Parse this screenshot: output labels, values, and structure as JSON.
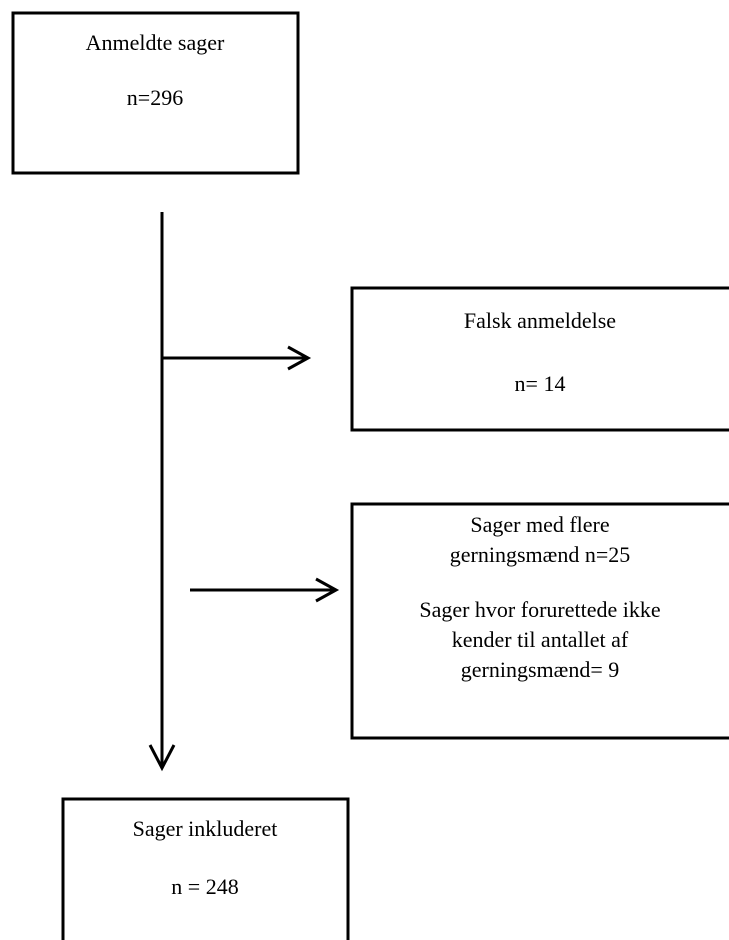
{
  "nodes": [
    {
      "lines": [
        "Anmeldte sager",
        "n=296"
      ]
    },
    {
      "lines": [
        "Falsk anmeldelse",
        "n= 14"
      ]
    },
    {
      "lines": [
        "Sager med flere",
        "gerningsmænd n=25",
        "Sager hvor forurettede ikke",
        "kender til antallet af",
        "gerningsmænd= 9"
      ]
    },
    {
      "lines": [
        "Sager inkluderet",
        "n = 248"
      ]
    }
  ]
}
